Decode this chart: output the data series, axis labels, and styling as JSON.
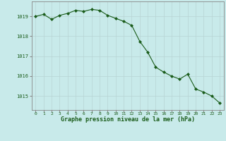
{
  "x": [
    0,
    1,
    2,
    3,
    4,
    5,
    6,
    7,
    8,
    9,
    10,
    11,
    12,
    13,
    14,
    15,
    16,
    17,
    18,
    19,
    20,
    21,
    22,
    23
  ],
  "y": [
    1019.0,
    1019.1,
    1018.85,
    1019.05,
    1019.15,
    1019.3,
    1019.25,
    1019.35,
    1019.3,
    1019.05,
    1018.9,
    1018.75,
    1018.55,
    1017.75,
    1017.2,
    1016.45,
    1016.2,
    1016.0,
    1015.85,
    1016.1,
    1015.35,
    1015.2,
    1015.0,
    1014.65
  ],
  "line_color": "#1a5c1a",
  "marker_color": "#1a5c1a",
  "bg_color": "#c8eaea",
  "grid_color_major": "#b0c8c8",
  "grid_color_minor": "#d8e8e8",
  "xlabel": "Graphe pression niveau de la mer (hPa)",
  "xlabel_color": "#1a5c1a",
  "tick_color": "#1a5c1a",
  "ylim": [
    1014.3,
    1019.75
  ],
  "yticks": [
    1015,
    1016,
    1017,
    1018,
    1019
  ],
  "xticks": [
    0,
    1,
    2,
    3,
    4,
    5,
    6,
    7,
    8,
    9,
    10,
    11,
    12,
    13,
    14,
    15,
    16,
    17,
    18,
    19,
    20,
    21,
    22,
    23
  ],
  "axis_color": "#888888"
}
